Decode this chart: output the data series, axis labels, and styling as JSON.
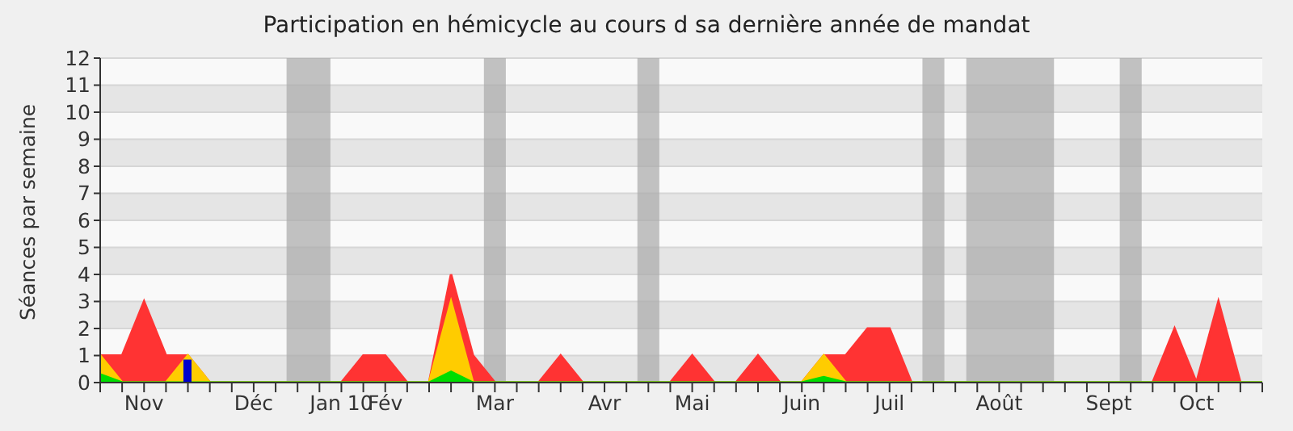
{
  "chart_data": {
    "type": "area",
    "title": "Participation en hémicycle au cours d sa dernière année de mandat",
    "ylabel": "Séances par semaine",
    "categories": [
      null,
      null,
      "Nov",
      null,
      null,
      null,
      null,
      "Déc",
      null,
      null,
      null,
      "Jan 10",
      null,
      "Fév",
      null,
      null,
      null,
      null,
      "Mar",
      null,
      null,
      null,
      null,
      "Avr",
      null,
      null,
      null,
      "Mai",
      null,
      null,
      null,
      null,
      "Juin",
      null,
      null,
      null,
      "Juil",
      null,
      null,
      null,
      null,
      "Août",
      null,
      null,
      null,
      null,
      "Sept",
      null,
      null,
      null,
      "Oct",
      null,
      null,
      null
    ],
    "series": [
      {
        "color": "#ff3333",
        "values": [
          1,
          1,
          3,
          1,
          1,
          0,
          0,
          0,
          0,
          0,
          0,
          0,
          1,
          1,
          0,
          0,
          4,
          1,
          0,
          0,
          0,
          1,
          0,
          0,
          0,
          0,
          0,
          1,
          0,
          0,
          1,
          0,
          0,
          1,
          1,
          2,
          2,
          0,
          0,
          0,
          0,
          0,
          0,
          0,
          0,
          0,
          0,
          0,
          0,
          2,
          0,
          3,
          0,
          0
        ]
      },
      {
        "color": "#ffcc00",
        "values": [
          1,
          0,
          0,
          0,
          1,
          0,
          0,
          0,
          0,
          0,
          0,
          0,
          0,
          0,
          0,
          0,
          3,
          0,
          0,
          0,
          0,
          0,
          0,
          0,
          0,
          0,
          0,
          0,
          0,
          0,
          0,
          0,
          0,
          1,
          0,
          0,
          0,
          0,
          0,
          0,
          0,
          0,
          0,
          0,
          0,
          0,
          0,
          0,
          0,
          0,
          0,
          0,
          0,
          0
        ]
      },
      {
        "color": "#00dd00",
        "values": [
          0.3,
          0,
          0,
          0,
          0,
          0,
          0,
          0,
          0,
          0,
          0,
          0,
          0,
          0,
          0,
          0,
          0.4,
          0,
          0,
          0,
          0,
          0,
          0,
          0,
          0,
          0,
          0,
          0,
          0,
          0,
          0,
          0,
          0,
          0.2,
          0,
          0,
          0,
          0,
          0,
          0,
          0,
          0,
          0,
          0,
          0,
          0,
          0,
          0,
          0,
          0,
          0,
          0,
          0,
          0
        ]
      },
      {
        "type": "bar",
        "color": "#0000cc",
        "values": [
          null,
          null,
          null,
          null,
          0.85,
          null,
          null,
          null,
          null,
          null,
          null,
          null,
          null,
          null,
          null,
          null,
          null,
          null,
          null,
          null,
          null,
          null,
          null,
          null,
          null,
          null,
          null,
          null,
          null,
          null,
          null,
          null,
          null,
          null,
          null,
          null,
          null,
          null,
          null,
          null,
          null,
          null,
          null,
          null,
          null,
          null,
          null,
          null,
          null,
          null,
          null,
          null,
          null,
          null
        ]
      }
    ],
    "ylim": [
      0,
      12
    ],
    "yticks": [
      0,
      1,
      2,
      3,
      4,
      5,
      6,
      7,
      8,
      9,
      10,
      11,
      12
    ],
    "grid": "y",
    "legend": false
  }
}
